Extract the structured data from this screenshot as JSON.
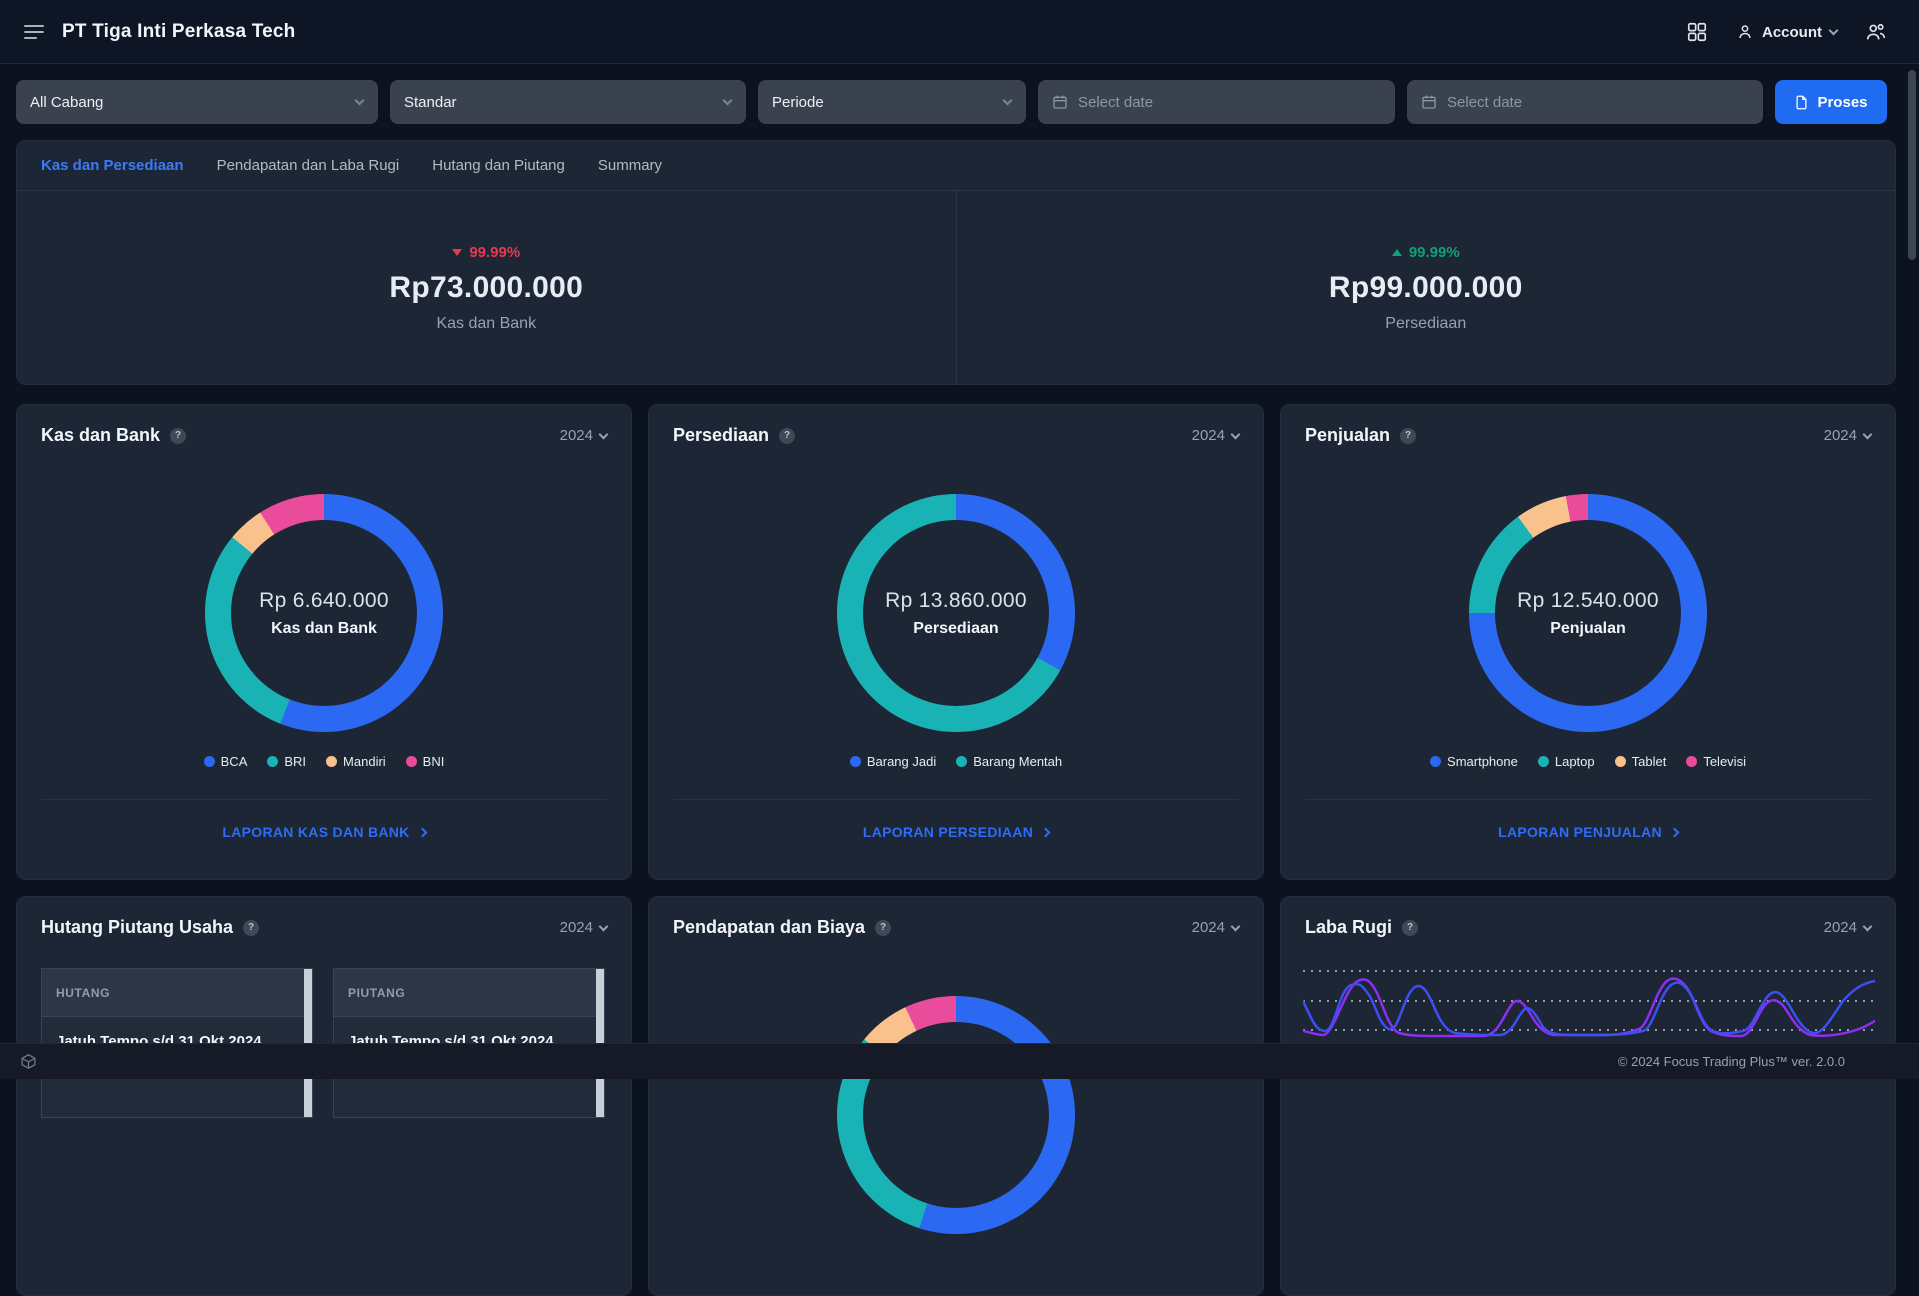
{
  "topbar": {
    "title": "PT Tiga Inti Perkasa Tech",
    "account_label": "Account"
  },
  "filters": {
    "branch_value": "All Cabang",
    "standard_value": "Standar",
    "period_value": "Periode",
    "date_start_placeholder": "Select date",
    "date_end_placeholder": "Select date",
    "process_button": "Proses"
  },
  "tabs": [
    {
      "label": "Kas dan Persediaan"
    },
    {
      "label": "Pendapatan dan Laba Rugi"
    },
    {
      "label": "Hutang dan Piutang"
    },
    {
      "label": "Summary"
    }
  ],
  "summary": {
    "left": {
      "change": "99.99%",
      "direction": "down",
      "value": "Rp73.000.000",
      "label": "Kas dan Bank"
    },
    "right": {
      "change": "99.99%",
      "direction": "up",
      "value": "Rp99.000.000",
      "label": "Persediaan"
    }
  },
  "cards": {
    "kas": {
      "title": "Kas dan Bank",
      "year": "2024",
      "center_value": "Rp 6.640.000",
      "center_label": "Kas dan Bank",
      "link": "LAPORAN KAS DAN BANK"
    },
    "persediaan": {
      "title": "Persediaan",
      "year": "2024",
      "center_value": "Rp 13.860.000",
      "center_label": "Persediaan",
      "link": "LAPORAN PERSEDIAAN"
    },
    "penjualan": {
      "title": "Penjualan",
      "year": "2024",
      "center_value": "Rp 12.540.000",
      "center_label": "Penjualan",
      "link": "LAPORAN PENJUALAN"
    },
    "hutang_piutang": {
      "title": "Hutang Piutang Usaha",
      "year": "2024",
      "panels": [
        {
          "header": "HUTANG",
          "due": "Jatuh Tempo s/d 31 Okt 2024"
        },
        {
          "header": "PIUTANG",
          "due": "Jatuh Tempo s/d 31 Okt 2024"
        }
      ]
    },
    "pendapatan_biaya": {
      "title": "Pendapatan dan Biaya",
      "year": "2024"
    },
    "laba_rugi": {
      "title": "Laba Rugi",
      "year": "2024"
    }
  },
  "chart_data": [
    {
      "type": "pie",
      "title": "Kas dan Bank",
      "center_value": "Rp 6.640.000",
      "series": [
        {
          "name": "BCA",
          "pct": 56,
          "color": "#2c69f2"
        },
        {
          "name": "BRI",
          "pct": 30,
          "color": "#19b3b5"
        },
        {
          "name": "Mandiri",
          "pct": 5,
          "color": "#f9c28d"
        },
        {
          "name": "BNI",
          "pct": 9,
          "color": "#ea4b9b"
        }
      ]
    },
    {
      "type": "pie",
      "title": "Persediaan",
      "center_value": "Rp 13.860.000",
      "series": [
        {
          "name": "Barang Jadi",
          "pct": 33,
          "color": "#2c69f2"
        },
        {
          "name": "Barang Mentah",
          "pct": 67,
          "color": "#19b3b5"
        }
      ]
    },
    {
      "type": "pie",
      "title": "Penjualan",
      "center_value": "Rp 12.540.000",
      "series": [
        {
          "name": "Smartphone",
          "pct": 75,
          "color": "#2c69f2"
        },
        {
          "name": "Laptop",
          "pct": 15,
          "color": "#19b3b5"
        },
        {
          "name": "Tablet",
          "pct": 7,
          "color": "#f9c28d"
        },
        {
          "name": "Televisi",
          "pct": 3,
          "color": "#ea4b9b"
        }
      ]
    },
    {
      "type": "pie",
      "title": "Pendapatan dan Biaya",
      "series": [
        {
          "name": "segment-1",
          "pct": 55,
          "color": "#2c69f2"
        },
        {
          "name": "segment-2",
          "pct": 31,
          "color": "#19b3b5"
        },
        {
          "name": "segment-3",
          "pct": 7,
          "color": "#f9c28d"
        },
        {
          "name": "segment-4",
          "pct": 7,
          "color": "#ea4b9b"
        }
      ]
    },
    {
      "type": "line",
      "title": "Laba Rugi",
      "grid": "dotted-horizontal",
      "series": [
        {
          "name": "series-1",
          "color": "#3c4ff2"
        },
        {
          "name": "series-2",
          "color": "#8d2ef2"
        }
      ]
    }
  ],
  "footer": {
    "copyright": "© 2024 Focus Trading Plus™ ver. 2.0.0"
  }
}
